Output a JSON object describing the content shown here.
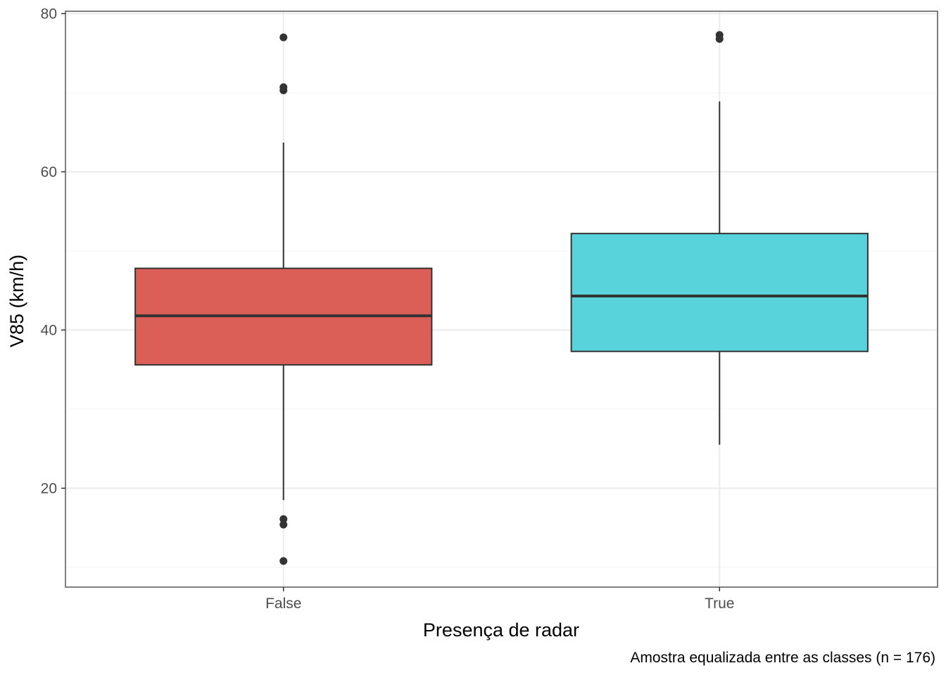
{
  "chart_data": {
    "type": "boxplot",
    "title": "",
    "xlabel": "Presença de radar",
    "ylabel": "V85 (km/h)",
    "caption": "Amostra equalizada entre as classes (n = 176)",
    "ylim": [
      7.5,
      80.3
    ],
    "yticks": [
      20,
      40,
      60,
      80
    ],
    "grid": true,
    "legend": "none",
    "categories": [
      "False",
      "True"
    ],
    "boxes": [
      {
        "category": "False",
        "color": "#dc5f57",
        "whisker_low": 18.5,
        "q1": 35.6,
        "median": 41.8,
        "q3": 47.8,
        "whisker_high": 63.7,
        "outliers": [
          77.0,
          70.7,
          70.3,
          16.1,
          15.4,
          10.8
        ]
      },
      {
        "category": "True",
        "color": "#58d3db",
        "whisker_low": 25.5,
        "q1": 37.3,
        "median": 44.3,
        "q3": 52.2,
        "whisker_high": 68.9,
        "outliers": [
          77.3,
          76.8
        ]
      }
    ]
  },
  "colors": {
    "panel_border": "#7f7f7f",
    "grid_major": "#ebebeb",
    "grid_minor": "#f5f5f5",
    "box_outline": "#333333",
    "tick_text": "#4d4d4d"
  }
}
